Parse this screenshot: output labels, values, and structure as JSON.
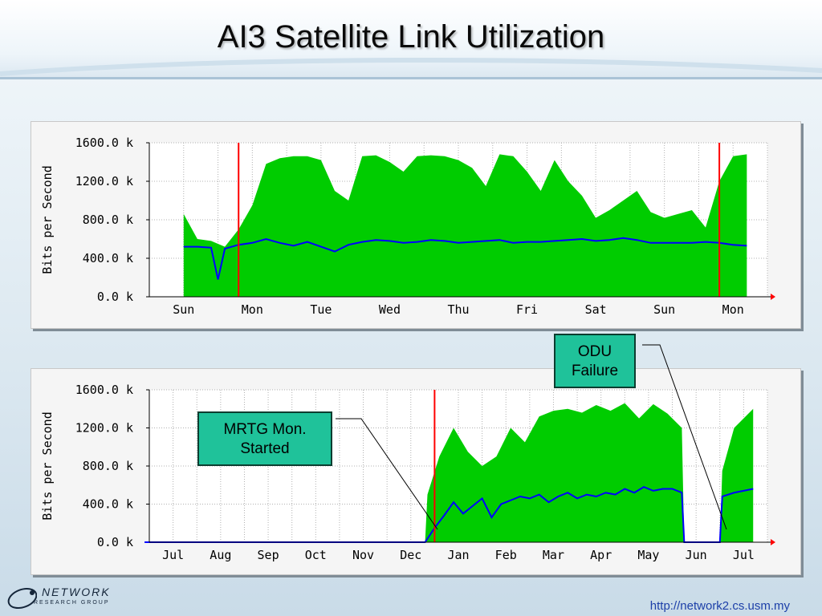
{
  "slide": {
    "title": "AI3 Satellite Link Utilization",
    "footer_url": "http://network2.cs.usm.my",
    "logo": {
      "name": "NETWORK",
      "subtitle": "RESEARCH GROUP"
    }
  },
  "callouts": {
    "odu": "ODU Failure",
    "mrtg": "MRTG Mon. Started"
  },
  "colors": {
    "inbound": "#00cc00",
    "outbound": "#0000ff",
    "marker": "#ff0000",
    "grid": "#b0b0b0",
    "plot_bg": "#ffffff"
  },
  "chart_data": [
    {
      "type": "area",
      "title": "",
      "ylabel": "Bits per Second",
      "ylim": [
        0,
        1600
      ],
      "yticks": [
        "0.0 k",
        "400.0 k",
        "800.0 k",
        "1200.0 k",
        "1600.0 k"
      ],
      "ytick_values": [
        0,
        400,
        800,
        1200,
        1600
      ],
      "categories": [
        "Sun",
        "Mon",
        "Tue",
        "Wed",
        "Thu",
        "Fri",
        "Sat",
        "Sun",
        "Mon"
      ],
      "marker_x": [
        0.8,
        7.8
      ],
      "series": [
        {
          "color": "#00cc00",
          "x": [
            0.0,
            0.2,
            0.4,
            0.6,
            0.8,
            1.0,
            1.2,
            1.4,
            1.6,
            1.8,
            2.0,
            2.2,
            2.4,
            2.6,
            2.8,
            3.0,
            3.2,
            3.4,
            3.6,
            3.8,
            4.0,
            4.2,
            4.4,
            4.6,
            4.8,
            5.0,
            5.2,
            5.4,
            5.6,
            5.8,
            6.0,
            6.2,
            6.4,
            6.6,
            6.8,
            7.0,
            7.2,
            7.4,
            7.6,
            7.8,
            8.0,
            8.2
          ],
          "values": [
            860,
            600,
            580,
            520,
            700,
            950,
            1380,
            1440,
            1460,
            1460,
            1420,
            1100,
            1000,
            1460,
            1470,
            1400,
            1300,
            1460,
            1470,
            1460,
            1420,
            1340,
            1150,
            1480,
            1460,
            1300,
            1100,
            1420,
            1200,
            1050,
            820,
            900,
            1000,
            1100,
            880,
            820,
            860,
            900,
            720,
            1200,
            1460,
            1480
          ]
        },
        {
          "color": "#0000ff",
          "x": [
            0.0,
            0.2,
            0.4,
            0.5,
            0.6,
            0.8,
            1.0,
            1.2,
            1.4,
            1.6,
            1.8,
            2.0,
            2.2,
            2.4,
            2.6,
            2.8,
            3.0,
            3.2,
            3.4,
            3.6,
            3.8,
            4.0,
            4.2,
            4.4,
            4.6,
            4.8,
            5.0,
            5.2,
            5.4,
            5.6,
            5.8,
            6.0,
            6.2,
            6.4,
            6.6,
            6.8,
            7.0,
            7.2,
            7.4,
            7.6,
            7.8,
            8.0,
            8.2
          ],
          "values": [
            520,
            520,
            510,
            180,
            500,
            540,
            560,
            600,
            560,
            530,
            570,
            520,
            470,
            540,
            570,
            590,
            580,
            560,
            570,
            590,
            580,
            560,
            570,
            580,
            590,
            560,
            570,
            570,
            580,
            590,
            600,
            580,
            590,
            610,
            590,
            560,
            560,
            560,
            560,
            570,
            560,
            540,
            530
          ]
        }
      ]
    },
    {
      "type": "area",
      "title": "",
      "ylabel": "Bits per Second",
      "ylim": [
        0,
        1600
      ],
      "yticks": [
        "0.0 k",
        "400.0 k",
        "800.0 k",
        "1200.0 k",
        "1600.0 k"
      ],
      "ytick_values": [
        0,
        400,
        800,
        1200,
        1600
      ],
      "categories": [
        "Jul",
        "Aug",
        "Sep",
        "Oct",
        "Nov",
        "Dec",
        "Jan",
        "Feb",
        "Mar",
        "Apr",
        "May",
        "Jun",
        "Jul"
      ],
      "marker_x": [
        5.5
      ],
      "series": [
        {
          "color": "#00cc00",
          "x": [
            -0.6,
            5.3,
            5.35,
            5.6,
            5.9,
            6.2,
            6.5,
            6.8,
            7.1,
            7.4,
            7.7,
            8.0,
            8.3,
            8.6,
            8.9,
            9.2,
            9.5,
            9.8,
            10.1,
            10.4,
            10.7,
            10.75,
            11.5,
            11.55,
            11.8,
            12.2
          ],
          "values": [
            0,
            0,
            500,
            900,
            1200,
            950,
            800,
            900,
            1200,
            1050,
            1320,
            1380,
            1400,
            1360,
            1440,
            1380,
            1460,
            1300,
            1450,
            1350,
            1200,
            0,
            0,
            750,
            1200,
            1400
          ]
        },
        {
          "color": "#0000ff",
          "x": [
            -0.6,
            5.3,
            5.5,
            5.7,
            5.9,
            6.1,
            6.3,
            6.5,
            6.7,
            6.9,
            7.1,
            7.3,
            7.5,
            7.7,
            7.9,
            8.1,
            8.3,
            8.5,
            8.7,
            8.9,
            9.1,
            9.3,
            9.5,
            9.7,
            9.9,
            10.1,
            10.3,
            10.5,
            10.7,
            10.75,
            11.5,
            11.55,
            11.8,
            12.2
          ],
          "values": [
            0,
            0,
            150,
            280,
            420,
            300,
            380,
            460,
            260,
            400,
            440,
            480,
            460,
            500,
            420,
            480,
            520,
            460,
            500,
            480,
            520,
            500,
            560,
            520,
            580,
            540,
            560,
            560,
            520,
            0,
            0,
            480,
            520,
            560
          ]
        }
      ]
    }
  ]
}
